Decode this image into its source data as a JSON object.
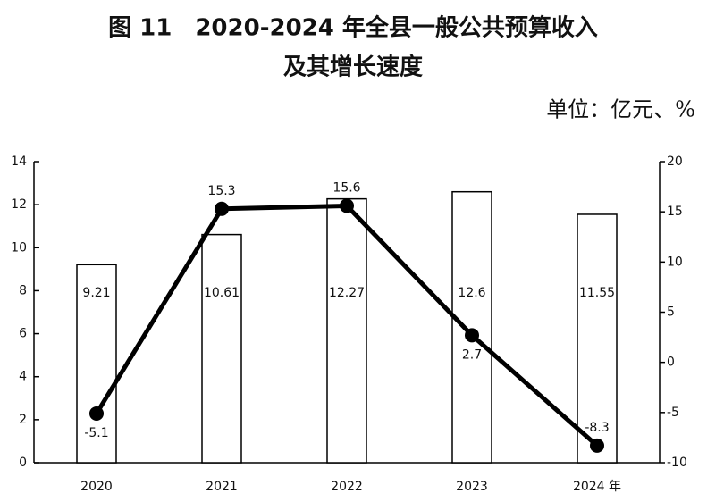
{
  "chart_data": {
    "type": "combo",
    "title": [
      "图 11　2020-2024 年全县一般公共预算收入",
      "及其增长速度"
    ],
    "unit": "单位：亿元、%",
    "categories": [
      "2020",
      "2021",
      "2022",
      "2023",
      "2024 年"
    ],
    "series": [
      {
        "type": "bar",
        "color": "#ffffff",
        "values": [
          9.21,
          10.61,
          12.27,
          12.6,
          11.55
        ]
      },
      {
        "type": "line",
        "axis": "y2",
        "color": "#000000",
        "values": [
          -5.1,
          15.3,
          15.6,
          2.7,
          -8.3
        ]
      }
    ],
    "ylim": [
      0,
      14
    ],
    "yticks": [
      0,
      2,
      4,
      6,
      8,
      10,
      12,
      14
    ],
    "y2lim": [
      -10,
      20
    ],
    "y2ticks": [
      -10,
      -5,
      0,
      5,
      10,
      15,
      20
    ],
    "grid": false
  }
}
